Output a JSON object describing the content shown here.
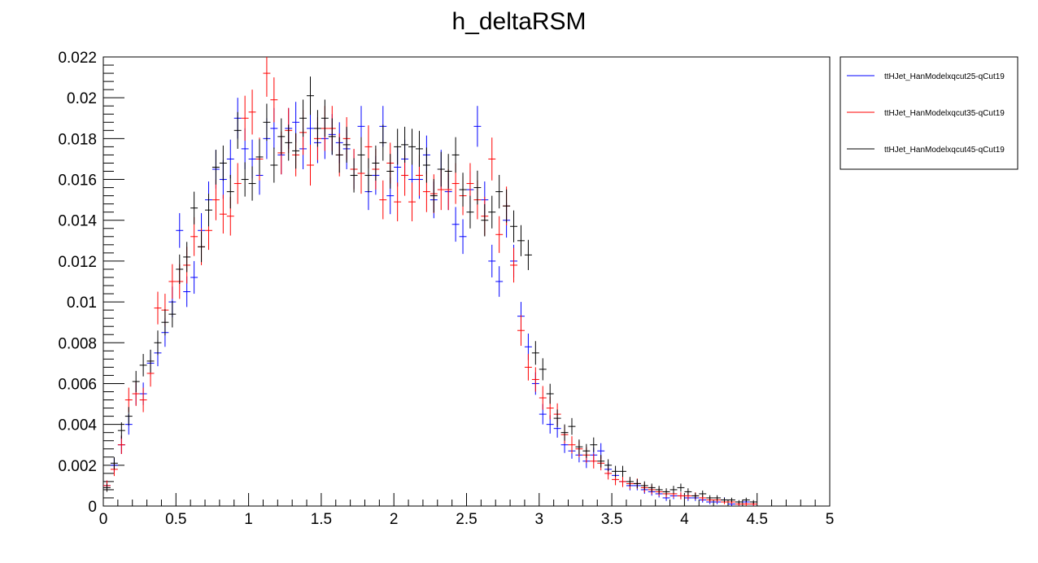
{
  "chart_data": {
    "type": "scatter",
    "title": "h_deltaRSM",
    "xlabel": "",
    "ylabel": "",
    "xlim": [
      0,
      5
    ],
    "ylim": [
      0,
      0.022
    ],
    "bin_width": 0.05,
    "x_ticks": [
      0,
      0.5,
      1,
      1.5,
      2,
      2.5,
      3,
      3.5,
      4,
      4.5,
      5
    ],
    "x_tick_labels": [
      "0",
      "0.5",
      "1",
      "1.5",
      "2",
      "2.5",
      "3",
      "3.5",
      "4",
      "4.5",
      "5"
    ],
    "y_ticks": [
      0,
      0.002,
      0.004,
      0.006,
      0.008,
      0.01,
      0.012,
      0.014,
      0.016,
      0.018,
      0.02,
      0.022
    ],
    "y_tick_labels": [
      "0",
      "0.002",
      "0.004",
      "0.006",
      "0.008",
      "0.01",
      "0.012",
      "0.014",
      "0.016",
      "0.018",
      "0.02",
      "0.022"
    ],
    "grid": false,
    "legend_position": "right",
    "series": [
      {
        "name": "ttHJet_HanModelxqcut25-qCut19",
        "color": "#0000ff",
        "values": [
          0.001,
          0.002,
          0.003,
          0.004,
          0.0055,
          0.0055,
          0.007,
          0.0075,
          0.0085,
          0.01,
          0.0135,
          0.0105,
          0.0112,
          0.0135,
          0.015,
          0.0165,
          0.016,
          0.017,
          0.019,
          0.0175,
          0.017,
          0.0162,
          0.018,
          0.0185,
          0.0172,
          0.0185,
          0.0188,
          0.0175,
          0.0185,
          0.0178,
          0.018,
          0.0182,
          0.0178,
          0.0175,
          0.0165,
          0.0186,
          0.0154,
          0.0162,
          0.0186,
          0.0152,
          0.0166,
          0.017,
          0.016,
          0.016,
          0.0172,
          0.015,
          0.0165,
          0.0154,
          0.0138,
          0.0132,
          0.0155,
          0.0186,
          0.015,
          0.012,
          0.011,
          0.014,
          0.012,
          0.0093,
          0.0078,
          0.006,
          0.0045,
          0.004,
          0.0038,
          0.003,
          0.0027,
          0.0025,
          0.0022,
          0.0025,
          0.0027,
          0.0018,
          0.0015,
          0.0012,
          0.001,
          0.001,
          0.0008,
          0.0007,
          0.0006,
          0.0004,
          0.0005,
          0.0005,
          0.0004,
          0.0004,
          0.0003,
          0.0002,
          0.0002,
          0.0003,
          0.0001,
          0.0001,
          0.0002,
          0.0001
        ],
        "errors": [
          0.00025,
          0.00035,
          0.00045,
          0.0005,
          0.00055,
          0.00055,
          0.00065,
          0.00065,
          0.0007,
          0.00075,
          0.00085,
          0.00075,
          0.0008,
          0.00085,
          0.0009,
          0.00095,
          0.00095,
          0.00095,
          0.001,
          0.001,
          0.00095,
          0.00095,
          0.001,
          0.001,
          0.00095,
          0.001,
          0.001,
          0.001,
          0.001,
          0.001,
          0.001,
          0.001,
          0.001,
          0.001,
          0.00095,
          0.001,
          0.0009,
          0.00095,
          0.001,
          0.0009,
          0.00095,
          0.00095,
          0.00095,
          0.00095,
          0.00095,
          0.0009,
          0.00095,
          0.0009,
          0.00085,
          0.00085,
          0.0009,
          0.001,
          0.0009,
          0.0008,
          0.00075,
          0.00085,
          0.0008,
          0.0007,
          0.00065,
          0.00055,
          0.0005,
          0.00045,
          0.00045,
          0.0004,
          0.00038,
          0.00036,
          0.00034,
          0.00036,
          0.00038,
          0.0003,
          0.00028,
          0.00025,
          0.00023,
          0.00023,
          0.0002,
          0.00019,
          0.00018,
          0.00015,
          0.00016,
          0.00016,
          0.00015,
          0.00015,
          0.00013,
          0.00011,
          0.00011,
          0.00013,
          9e-05,
          9e-05,
          0.00011,
          9e-05
        ]
      },
      {
        "name": "ttHJet_HanModelxqcut35-qCut19",
        "color": "#ff0000",
        "values": [
          0.001,
          0.0018,
          0.003,
          0.0052,
          0.0055,
          0.0052,
          0.0065,
          0.0097,
          0.0096,
          0.011,
          0.011,
          0.0118,
          0.0132,
          0.0127,
          0.0135,
          0.015,
          0.0143,
          0.0142,
          0.0158,
          0.019,
          0.0193,
          0.017,
          0.0212,
          0.0199,
          0.0173,
          0.0184,
          0.0172,
          0.0183,
          0.0167,
          0.018,
          0.0185,
          0.0185,
          0.0172,
          0.018,
          0.0165,
          0.0163,
          0.0176,
          0.0165,
          0.015,
          0.0168,
          0.0149,
          0.0162,
          0.0149,
          0.0162,
          0.0154,
          0.0153,
          0.0155,
          0.0155,
          0.0158,
          0.0152,
          0.0158,
          0.015,
          0.0142,
          0.017,
          0.0133,
          0.0147,
          0.0118,
          0.0086,
          0.0068,
          0.0062,
          0.0053,
          0.0048,
          0.0045,
          0.0035,
          0.003,
          0.0028,
          0.0025,
          0.0022,
          0.0021,
          0.0016,
          0.0013,
          0.0012,
          0.0011,
          0.0011,
          0.0009,
          0.0008,
          0.0007,
          0.0006,
          0.0006,
          0.0005,
          0.0005,
          0.0005,
          0.0004,
          0.0003,
          0.0003,
          0.0002,
          0.0002,
          0.0001,
          0.0001,
          0.0001
        ],
        "errors": [
          0.00025,
          0.00033,
          0.00045,
          0.0006,
          0.0006,
          0.0006,
          0.00065,
          0.0008,
          0.0008,
          0.00085,
          0.00085,
          0.0009,
          0.00095,
          0.0009,
          0.00095,
          0.001,
          0.00095,
          0.00095,
          0.001,
          0.0011,
          0.0011,
          0.00105,
          0.00115,
          0.0011,
          0.00105,
          0.0011,
          0.00105,
          0.0011,
          0.001,
          0.00105,
          0.0011,
          0.0011,
          0.00105,
          0.00105,
          0.001,
          0.001,
          0.00105,
          0.001,
          0.00095,
          0.001,
          0.00095,
          0.001,
          0.00095,
          0.001,
          0.001,
          0.00095,
          0.001,
          0.001,
          0.001,
          0.00095,
          0.001,
          0.00095,
          0.00095,
          0.00105,
          0.0009,
          0.00095,
          0.00085,
          0.00075,
          0.00065,
          0.0006,
          0.00058,
          0.00055,
          0.00053,
          0.00045,
          0.00042,
          0.0004,
          0.00038,
          0.00036,
          0.00035,
          0.0003,
          0.00028,
          0.00027,
          0.00025,
          0.00025,
          0.00023,
          0.00022,
          0.0002,
          0.00019,
          0.00019,
          0.00017,
          0.00017,
          0.00017,
          0.00015,
          0.00013,
          0.00013,
          0.00011,
          0.00011,
          9e-05,
          9e-05,
          9e-05
        ]
      },
      {
        "name": "ttHJet_HanModelxqcut45-qCut19",
        "color": "#000000",
        "values": [
          0.0009,
          0.0021,
          0.0037,
          0.0044,
          0.0061,
          0.0069,
          0.0071,
          0.008,
          0.009,
          0.0094,
          0.0116,
          0.0122,
          0.0146,
          0.0127,
          0.0145,
          0.0166,
          0.0168,
          0.0154,
          0.0184,
          0.016,
          0.0158,
          0.0171,
          0.0188,
          0.0167,
          0.0181,
          0.0178,
          0.0174,
          0.019,
          0.0201,
          0.0185,
          0.019,
          0.0181,
          0.0172,
          0.0177,
          0.0162,
          0.0172,
          0.0162,
          0.0168,
          0.0178,
          0.0164,
          0.0176,
          0.0177,
          0.0176,
          0.0175,
          0.0167,
          0.0152,
          0.0165,
          0.0164,
          0.0172,
          0.0155,
          0.0144,
          0.0156,
          0.014,
          0.0144,
          0.0154,
          0.0147,
          0.0137,
          0.013,
          0.0123,
          0.0075,
          0.0067,
          0.0055,
          0.0043,
          0.0036,
          0.0039,
          0.0029,
          0.0027,
          0.003,
          0.0022,
          0.002,
          0.0017,
          0.0017,
          0.0012,
          0.0011,
          0.001,
          0.0009,
          0.0008,
          0.0007,
          0.0008,
          0.0009,
          0.0007,
          0.0005,
          0.0006,
          0.0004,
          0.0004,
          0.0003,
          0.0003,
          0.0002,
          0.0003,
          0.0002
        ],
        "errors": [
          0.0002,
          0.0003,
          0.0004,
          0.00045,
          0.00052,
          0.00055,
          0.00056,
          0.0006,
          0.00064,
          0.00065,
          0.00072,
          0.00074,
          0.0008,
          0.00075,
          0.0008,
          0.00085,
          0.00086,
          0.00082,
          0.0009,
          0.00084,
          0.00084,
          0.00087,
          0.00091,
          0.00086,
          0.00089,
          0.00088,
          0.00087,
          0.00091,
          0.00094,
          0.0009,
          0.00091,
          0.00089,
          0.00087,
          0.00088,
          0.00084,
          0.00087,
          0.00084,
          0.00086,
          0.00088,
          0.00085,
          0.00088,
          0.00088,
          0.00088,
          0.00088,
          0.00086,
          0.00082,
          0.00085,
          0.00085,
          0.00087,
          0.00083,
          0.0008,
          0.00083,
          0.00079,
          0.0008,
          0.00082,
          0.00081,
          0.00078,
          0.00076,
          0.00074,
          0.00058,
          0.00054,
          0.00049,
          0.00043,
          0.0004,
          0.00041,
          0.00036,
          0.00034,
          0.00036,
          0.00031,
          0.00029,
          0.00027,
          0.00027,
          0.00023,
          0.00022,
          0.00021,
          0.0002,
          0.00019,
          0.00017,
          0.00019,
          0.0002,
          0.00017,
          0.00015,
          0.00016,
          0.00013,
          0.00013,
          0.00011,
          0.00011,
          9e-05,
          0.00011,
          9e-05
        ]
      }
    ]
  }
}
